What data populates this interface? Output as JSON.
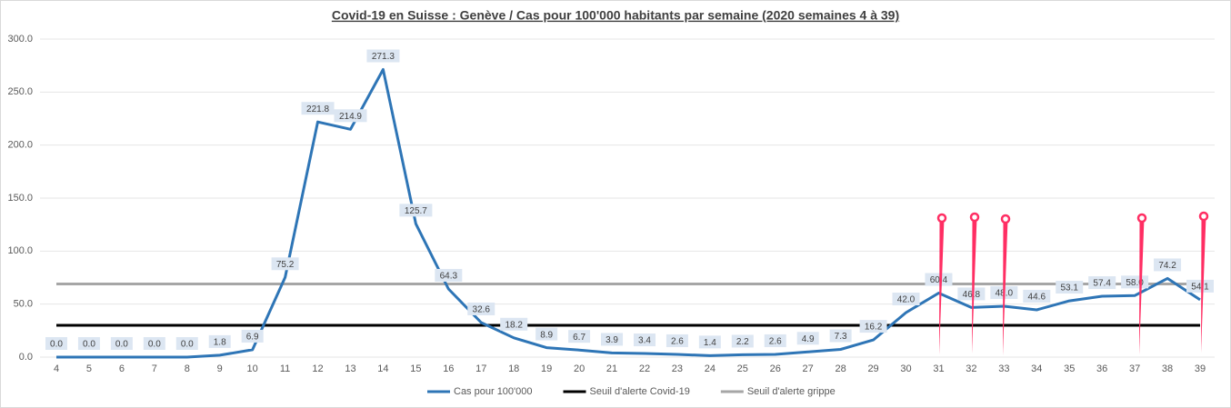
{
  "chart_data": {
    "type": "line",
    "title": "Covid-19 en Suisse : Genève / Cas pour 100'000 habitants par semaine (2020 semaines 4 à 39)",
    "categories": [
      "4",
      "5",
      "6",
      "7",
      "8",
      "9",
      "10",
      "11",
      "12",
      "13",
      "14",
      "15",
      "16",
      "17",
      "18",
      "19",
      "20",
      "21",
      "22",
      "23",
      "24",
      "25",
      "26",
      "27",
      "28",
      "29",
      "30",
      "31",
      "32",
      "33",
      "34",
      "35",
      "36",
      "37",
      "38",
      "39"
    ],
    "series": [
      {
        "name": "Cas pour 100'000",
        "color": "#2e75b6",
        "values": [
          0,
          0,
          0,
          0,
          0,
          1.8,
          6.9,
          75.2,
          221.8,
          214.9,
          271.3,
          125.7,
          64.3,
          32.6,
          18.2,
          8.9,
          6.7,
          3.9,
          3.4,
          2.6,
          1.4,
          2.2,
          2.6,
          4.9,
          7.3,
          16.2,
          42,
          60.4,
          46.8,
          48,
          44.6,
          53.1,
          57.4,
          58,
          74.2,
          54.1
        ],
        "value_labels": [
          "0.0",
          "0.0",
          "0.0",
          "0.0",
          "0.0",
          "1.8",
          "6.9",
          "75.2",
          "221.8",
          "214.9",
          "271.3",
          "125.7",
          "64.3",
          "32.6",
          "18.2",
          "8.9",
          "6.7",
          "3.9",
          "3.4",
          "2.6",
          "1.4",
          "2.2",
          "2.6",
          "4.9",
          "7.3",
          "16.2",
          "42.0",
          "60.4",
          "46.8",
          "48.0",
          "44.6",
          "53.1",
          "57.4",
          "58.0",
          "74.2",
          "54.1"
        ]
      },
      {
        "name": "Seuil d'alerte Covid-19",
        "color": "#000000",
        "values": [
          30,
          30,
          30,
          30,
          30,
          30,
          30,
          30,
          30,
          30,
          30,
          30,
          30,
          30,
          30,
          30,
          30,
          30,
          30,
          30,
          30,
          30,
          30,
          30,
          30,
          30,
          30,
          30,
          30,
          30,
          30,
          30,
          30,
          30,
          30,
          30
        ]
      },
      {
        "name": "Seuil d'alerte grippe",
        "color": "#a6a6a6",
        "values": [
          69,
          69,
          69,
          69,
          69,
          69,
          69,
          69,
          69,
          69,
          69,
          69,
          69,
          69,
          69,
          69,
          69,
          69,
          69,
          69,
          69,
          69,
          69,
          69,
          69,
          69,
          69,
          69,
          69,
          69,
          69,
          69,
          69,
          69,
          69,
          69
        ]
      }
    ],
    "ylim": [
      0,
      300
    ],
    "yticks": [
      {
        "value": 0,
        "label": "0.0"
      },
      {
        "value": 50,
        "label": "50.0"
      },
      {
        "value": 100,
        "label": "100.0"
      },
      {
        "value": 150,
        "label": "150.0"
      },
      {
        "value": 200,
        "label": "200.0"
      },
      {
        "value": 250,
        "label": "250.0"
      },
      {
        "value": 300,
        "label": "300.0"
      }
    ],
    "grid": true,
    "legend": "bottom"
  }
}
